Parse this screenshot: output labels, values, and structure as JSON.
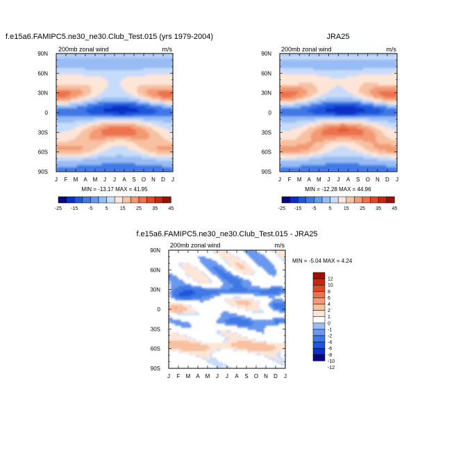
{
  "colors": {
    "scale": [
      "#08087a",
      "#0a2fc4",
      "#1f56dd",
      "#3f79e6",
      "#6898ef",
      "#98bcf5",
      "#c7dcfa",
      "#fde6d8",
      "#f8c1a2",
      "#f39a75",
      "#ec714d",
      "#de4828",
      "#c4280f",
      "#9b1204"
    ]
  },
  "chart_data": [
    {
      "type": "heatmap",
      "panel": "model",
      "title": "f.e15a6.FAMIPC5.ne30_ne30.Club_Test.015 (yrs 1979-2004)",
      "left_label": "200mb zonal wind",
      "right_label": "m/s",
      "stats_text": "MIN = -13.17 MAX =  41.95",
      "min": -13.17,
      "max": 41.95,
      "months": [
        "J",
        "F",
        "M",
        "A",
        "M",
        "J",
        "J",
        "A",
        "S",
        "O",
        "N",
        "D",
        "J"
      ],
      "lat_ticks": [
        "90N",
        "60N",
        "30N",
        "0",
        "30S",
        "60S",
        "90S"
      ],
      "levels": [
        -25,
        -20,
        -15,
        -10,
        -5,
        0,
        5,
        10,
        15,
        20,
        25,
        30,
        35,
        40,
        45
      ],
      "colorbar_labels": [
        "-25",
        "-15",
        "-5",
        "5",
        "15",
        "25",
        "35",
        "45"
      ],
      "colorbar_label_indices": [
        0,
        2,
        4,
        6,
        8,
        10,
        12,
        14
      ]
    },
    {
      "type": "heatmap",
      "panel": "obs",
      "title": "JRA25",
      "left_label": "200mb zonal wind",
      "right_label": "m/s",
      "stats_text": "MIN = -12.28 MAX =  44.96",
      "min": -12.28,
      "max": 44.96,
      "months": [
        "J",
        "F",
        "M",
        "A",
        "M",
        "J",
        "J",
        "A",
        "S",
        "O",
        "N",
        "D",
        "J"
      ],
      "lat_ticks": [
        "90N",
        "60N",
        "30N",
        "0",
        "30S",
        "60S",
        "90S"
      ],
      "levels": [
        -25,
        -20,
        -15,
        -10,
        -5,
        0,
        5,
        10,
        15,
        20,
        25,
        30,
        35,
        40,
        45
      ],
      "colorbar_labels": [
        "-25",
        "-15",
        "-5",
        "5",
        "15",
        "25",
        "35",
        "45"
      ],
      "colorbar_label_indices": [
        0,
        2,
        4,
        6,
        8,
        10,
        12,
        14
      ]
    },
    {
      "type": "heatmap",
      "panel": "diff",
      "title": "f.e15a6.FAMIPC5.ne30_ne30.Club_Test.015 - JRA25",
      "left_label": "200mb zonal wind",
      "right_label": "m/s",
      "stats_text": "MIN =  -5.04 MAX =   4.24",
      "min": -5.04,
      "max": 4.24,
      "months": [
        "J",
        "F",
        "M",
        "A",
        "M",
        "J",
        "J",
        "A",
        "S",
        "O",
        "N",
        "D",
        "J"
      ],
      "lat_ticks": [
        "90N",
        "60N",
        "30N",
        "0",
        "30S",
        "60S",
        "90S"
      ],
      "levels": [
        -12,
        -10,
        -8,
        -6,
        -4,
        -2,
        -1,
        0,
        1,
        2,
        4,
        6,
        8,
        10,
        12
      ],
      "colorbar_labels": [
        "12",
        "10",
        "8",
        "6",
        "4",
        "2",
        "1",
        "0",
        "-1",
        "-2",
        "-4",
        "-6",
        "-8",
        "-10",
        "-12"
      ]
    }
  ]
}
